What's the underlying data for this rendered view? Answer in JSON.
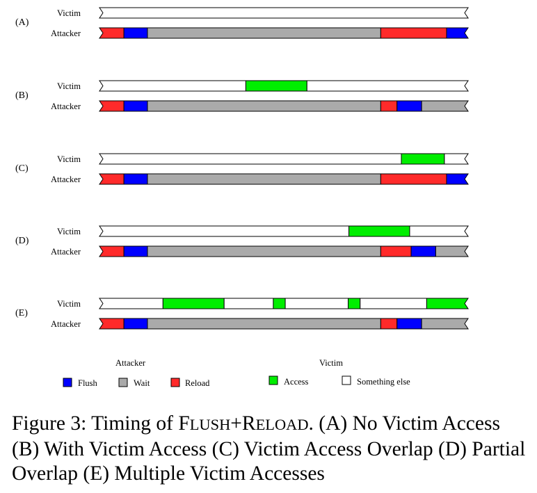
{
  "colors": {
    "flush": "#0000ff",
    "wait": "#aaaaaa",
    "reload": "#ff2a2a",
    "access": "#00ee00",
    "something_else": "#ffffff",
    "stroke": "#000000"
  },
  "timeline_span": [
    0,
    100
  ],
  "rows": [
    {
      "label": "(A)",
      "victim_label": "Victim",
      "attacker_label": "Attacker",
      "victim": [
        {
          "kind": "something_else",
          "start": 0,
          "end": 100
        }
      ],
      "attacker": [
        {
          "kind": "reload",
          "start": 0,
          "end": 5.8
        },
        {
          "kind": "flush",
          "start": 5.8,
          "end": 12.3
        },
        {
          "kind": "wait",
          "start": 12.3,
          "end": 76.8
        },
        {
          "kind": "reload",
          "start": 76.8,
          "end": 95
        },
        {
          "kind": "flush",
          "start": 95,
          "end": 100
        }
      ]
    },
    {
      "label": "(B)",
      "victim_label": "Victim",
      "attacker_label": "Attacker",
      "victim": [
        {
          "kind": "something_else",
          "start": 0,
          "end": 39.5
        },
        {
          "kind": "access",
          "start": 39.5,
          "end": 56.4
        },
        {
          "kind": "something_else",
          "start": 56.4,
          "end": 100
        }
      ],
      "attacker": [
        {
          "kind": "reload",
          "start": 0,
          "end": 5.8
        },
        {
          "kind": "flush",
          "start": 5.8,
          "end": 12.3
        },
        {
          "kind": "wait",
          "start": 12.3,
          "end": 76.8
        },
        {
          "kind": "reload",
          "start": 76.8,
          "end": 81.3
        },
        {
          "kind": "flush",
          "start": 81.3,
          "end": 88.1
        },
        {
          "kind": "wait",
          "start": 88.1,
          "end": 100
        }
      ]
    },
    {
      "label": "(C)",
      "victim_label": "Victim",
      "attacker_label": "Attacker",
      "victim": [
        {
          "kind": "something_else",
          "start": 0,
          "end": 82.5
        },
        {
          "kind": "access",
          "start": 82.5,
          "end": 94.4
        },
        {
          "kind": "something_else",
          "start": 94.4,
          "end": 100
        }
      ],
      "attacker": [
        {
          "kind": "reload",
          "start": 0,
          "end": 5.8
        },
        {
          "kind": "flush",
          "start": 5.8,
          "end": 12.3
        },
        {
          "kind": "wait",
          "start": 12.3,
          "end": 76.8
        },
        {
          "kind": "reload",
          "start": 76.8,
          "end": 95
        },
        {
          "kind": "flush",
          "start": 95,
          "end": 100
        }
      ]
    },
    {
      "label": "(D)",
      "victim_label": "Victim",
      "attacker_label": "Attacker",
      "victim": [
        {
          "kind": "something_else",
          "start": 0,
          "end": 68
        },
        {
          "kind": "access",
          "start": 68,
          "end": 84.8
        },
        {
          "kind": "something_else",
          "start": 84.8,
          "end": 100
        }
      ],
      "attacker": [
        {
          "kind": "reload",
          "start": 0,
          "end": 5.8
        },
        {
          "kind": "flush",
          "start": 5.8,
          "end": 12.3
        },
        {
          "kind": "wait",
          "start": 12.3,
          "end": 76.8
        },
        {
          "kind": "reload",
          "start": 76.8,
          "end": 85.2
        },
        {
          "kind": "flush",
          "start": 85.2,
          "end": 92
        },
        {
          "kind": "wait",
          "start": 92,
          "end": 100
        }
      ]
    },
    {
      "label": "(E)",
      "victim_label": "Victim",
      "attacker_label": "Attacker",
      "victim": [
        {
          "kind": "something_else",
          "start": 0,
          "end": 16.6
        },
        {
          "kind": "access",
          "start": 16.6,
          "end": 33.5
        },
        {
          "kind": "something_else",
          "start": 33.5,
          "end": 47.1
        },
        {
          "kind": "access",
          "start": 47.1,
          "end": 50.4
        },
        {
          "kind": "something_else",
          "start": 50.4,
          "end": 67.8
        },
        {
          "kind": "access",
          "start": 67.8,
          "end": 71.1
        },
        {
          "kind": "something_else",
          "start": 71.1,
          "end": 89.5
        },
        {
          "kind": "access",
          "start": 89.5,
          "end": 100
        }
      ],
      "attacker": [
        {
          "kind": "reload",
          "start": 0,
          "end": 5.8
        },
        {
          "kind": "flush",
          "start": 5.8,
          "end": 12.3
        },
        {
          "kind": "wait",
          "start": 12.3,
          "end": 76.8
        },
        {
          "kind": "reload",
          "start": 76.8,
          "end": 81.3
        },
        {
          "kind": "flush",
          "start": 81.3,
          "end": 88.1
        },
        {
          "kind": "wait",
          "start": 88.1,
          "end": 100
        }
      ]
    }
  ],
  "legend": {
    "attacker_title": "Attacker",
    "victim_title": "Victim",
    "items": [
      {
        "kind": "flush",
        "label": "Flush"
      },
      {
        "kind": "wait",
        "label": "Wait"
      },
      {
        "kind": "reload",
        "label": "Reload"
      },
      {
        "kind": "access",
        "label": "Access"
      },
      {
        "kind": "something_else",
        "label": "Something else"
      }
    ]
  },
  "caption": {
    "prefix": "Figure 3: Timing of ",
    "flush_initial": "F",
    "flush_rest": "LUSH",
    "plus": "+",
    "reload_initial": "R",
    "reload_rest": "ELOAD",
    "suffix": ". (A) No Victim Access (B) With Victim Access (C) Victim Access Overlap (D) Partial Overlap (E) Multiple Victim Accesses"
  }
}
